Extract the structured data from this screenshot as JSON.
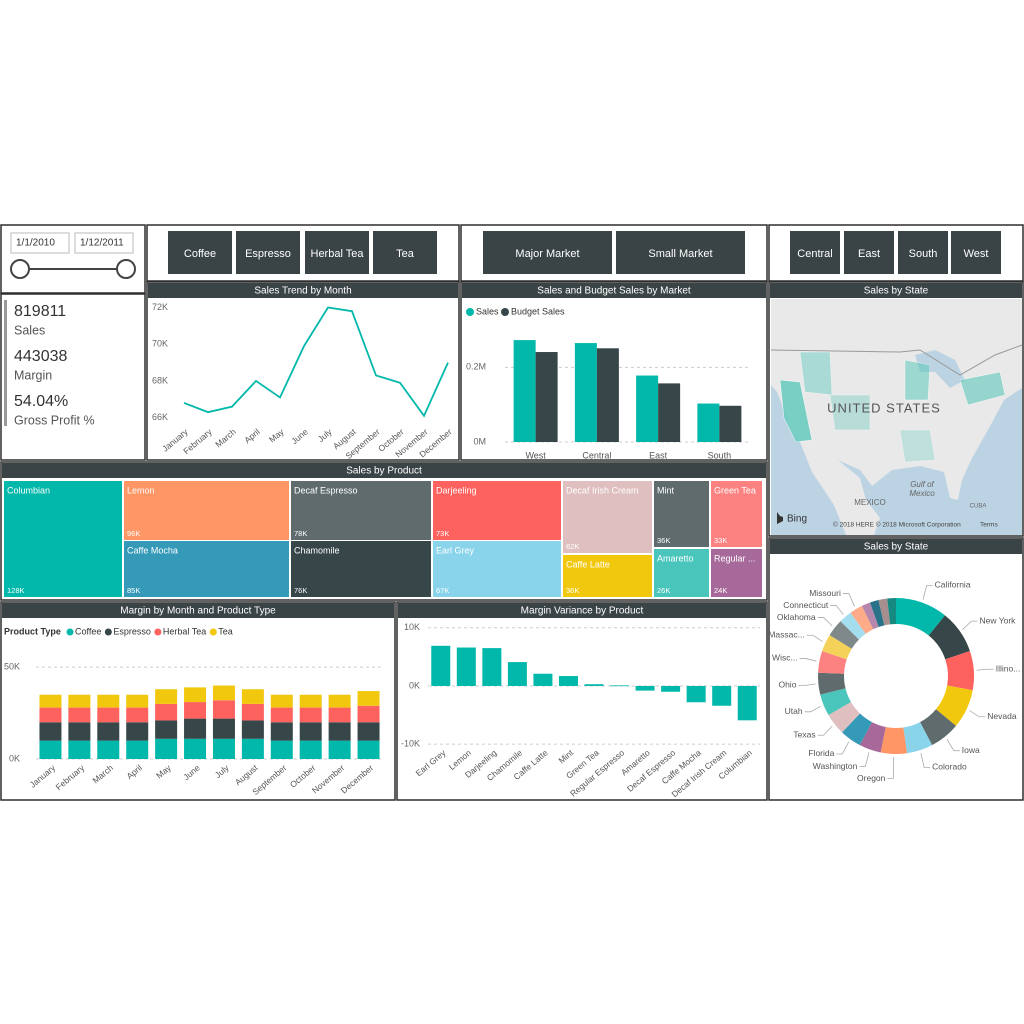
{
  "filters": {
    "dates": [
      "1/1/2010",
      "1/12/2011"
    ],
    "products": [
      "Coffee",
      "Espresso",
      "Herbal Tea",
      "Tea"
    ],
    "markets": [
      "Major Market",
      "Small Market"
    ],
    "regions": [
      "Central",
      "East",
      "South",
      "West"
    ]
  },
  "kpis": [
    {
      "value": "819811",
      "label": "Sales"
    },
    {
      "value": "443038",
      "label": "Margin"
    },
    {
      "value": "54.04%",
      "label": "Gross Profit %"
    }
  ],
  "map": {
    "title": "Sales by State",
    "country": "UNITED STATES",
    "labels": [
      "MEXICO",
      "Gulf of",
      "Mexico",
      "CUBA"
    ],
    "brand": "Bing",
    "copyright": "© 2018 HERE © 2018 Microsoft Corporation",
    "terms": "Terms"
  },
  "chart_data": [
    {
      "type": "line",
      "title": "Sales Trend by Month",
      "categories": [
        "January",
        "February",
        "March",
        "April",
        "May",
        "June",
        "July",
        "August",
        "September",
        "October",
        "November",
        "December"
      ],
      "values": [
        66800,
        66300,
        66600,
        68000,
        67100,
        69900,
        72000,
        71800,
        68300,
        67900,
        66100,
        69000
      ],
      "color": "#01b8aa",
      "ylim": [
        65600,
        72300
      ],
      "yticks": [
        {
          "value": 66000,
          "label": "66K"
        },
        {
          "value": 68000,
          "label": "68K"
        },
        {
          "value": 70000,
          "label": "70K"
        },
        {
          "value": 72000,
          "label": "72K"
        }
      ],
      "grid": false
    },
    {
      "type": "grouped_bar",
      "title": "Sales and Budget Sales by Market",
      "categories": [
        "West",
        "Central",
        "East",
        "South"
      ],
      "series": [
        {
          "name": "Sales",
          "color": "#01b8aa",
          "values": [
            273000,
            265000,
            178000,
            103000
          ]
        },
        {
          "name": "Budget Sales",
          "color": "#374649",
          "values": [
            241000,
            251000,
            157000,
            97000
          ]
        }
      ],
      "ylim": [
        0,
        300000
      ],
      "yticks": [
        {
          "value": 0,
          "label": "0M"
        },
        {
          "value": 200000,
          "label": "0.2M"
        }
      ],
      "grid": true
    },
    {
      "type": "treemap",
      "title": "Sales by Product",
      "categories": [
        "Columbian",
        "Lemon",
        "Caffe Mocha",
        "Decaf Espresso",
        "Chamomile",
        "Darjeeling",
        "Earl Grey",
        "Decaf Irish Cream",
        "Caffe Latte",
        "Mint",
        "Amaretto",
        "Green Tea",
        "Regular ..."
      ],
      "values": [
        128000,
        96000,
        85000,
        78000,
        76000,
        73000,
        67000,
        62000,
        36000,
        36000,
        26000,
        33000,
        24000
      ],
      "value_labels": [
        "128K",
        "96K",
        "85K",
        "78K",
        "76K",
        "73K",
        "67K",
        "62K",
        "36K",
        "36K",
        "26K",
        "33K",
        "24K"
      ],
      "colors": [
        "#01b8aa",
        "#fe9666",
        "#3599b8",
        "#5f6b6d",
        "#374649",
        "#fd625e",
        "#8ad4eb",
        "#dfbfbf",
        "#f2c80f",
        "#5f6b6d",
        "#4ac5bb",
        "#fb8281",
        "#a66999"
      ]
    },
    {
      "type": "stacked_bar",
      "title": "Margin by Month and Product Type",
      "legend_title": "Product Type",
      "categories": [
        "January",
        "February",
        "March",
        "April",
        "May",
        "June",
        "July",
        "August",
        "September",
        "October",
        "November",
        "December"
      ],
      "series": [
        {
          "name": "Coffee",
          "color": "#01b8aa",
          "values": [
            10000,
            10000,
            10000,
            10000,
            11000,
            11000,
            11000,
            11000,
            10000,
            10000,
            10000,
            10000
          ]
        },
        {
          "name": "Espresso",
          "color": "#374649",
          "values": [
            10000,
            10000,
            10000,
            10000,
            10000,
            11000,
            11000,
            10000,
            10000,
            10000,
            10000,
            10000
          ]
        },
        {
          "name": "Herbal Tea",
          "color": "#fd625e",
          "values": [
            8000,
            8000,
            8000,
            8000,
            9000,
            9000,
            10000,
            9000,
            8000,
            8000,
            8000,
            9000
          ]
        },
        {
          "name": "Tea",
          "color": "#f2c80f",
          "values": [
            7000,
            7000,
            7000,
            7000,
            8000,
            8000,
            8000,
            8000,
            7000,
            7000,
            7000,
            8000
          ]
        }
      ],
      "ylim": [
        0,
        55000
      ],
      "yticks": [
        {
          "value": 0,
          "label": "0K"
        },
        {
          "value": 50000,
          "label": "50K"
        }
      ],
      "grid": true
    },
    {
      "type": "bar",
      "title": "Margin Variance by Product",
      "categories": [
        "Earl Grey",
        "Lemon",
        "Darjeeling",
        "Chamomile",
        "Caffe Latte",
        "Mint",
        "Green Tea",
        "Regular Espresso",
        "Amaretto",
        "Decaf Espresso",
        "Caffe Mocha",
        "Decaf Irish Cream",
        "Columbian"
      ],
      "values": [
        6900,
        6600,
        6500,
        4100,
        2100,
        1700,
        300,
        100,
        -800,
        -1000,
        -2800,
        -3400,
        -5900
      ],
      "color": "#01b8aa",
      "ylim": [
        -11000,
        11500
      ],
      "yticks": [
        {
          "value": 10000,
          "label": "10K"
        },
        {
          "value": 0,
          "label": "0K"
        },
        {
          "value": -10000,
          "label": "-10K"
        }
      ],
      "grid": true
    },
    {
      "type": "donut",
      "title": "Sales by State",
      "categories": [
        "California",
        "New York",
        "Illino...",
        "Nevada",
        "Iowa",
        "Colorado",
        "Oregon",
        "Washington",
        "Florida",
        "Texas",
        "Utah",
        "Ohio",
        "Wisc...",
        "Massac...",
        "Oklahoma",
        "Connecticut",
        "Missouri",
        null,
        null,
        null,
        null
      ],
      "values": [
        12,
        10,
        9,
        9,
        7,
        6,
        6,
        5,
        5,
        5,
        5,
        5,
        5,
        4,
        4,
        3,
        3,
        2,
        2,
        2,
        2
      ],
      "colors": [
        "#01b8aa",
        "#374649",
        "#fd625e",
        "#f2c80f",
        "#5f6b6d",
        "#8ad4eb",
        "#fe9666",
        "#a66999",
        "#3599b8",
        "#dfbfbf",
        "#4ac5bb",
        "#5f6b6d",
        "#fb8281",
        "#f4d25a",
        "#7f898a",
        "#a4ddee",
        "#fdab89",
        "#b687ac",
        "#28738a",
        "#a78f8f",
        "#168980"
      ]
    }
  ]
}
